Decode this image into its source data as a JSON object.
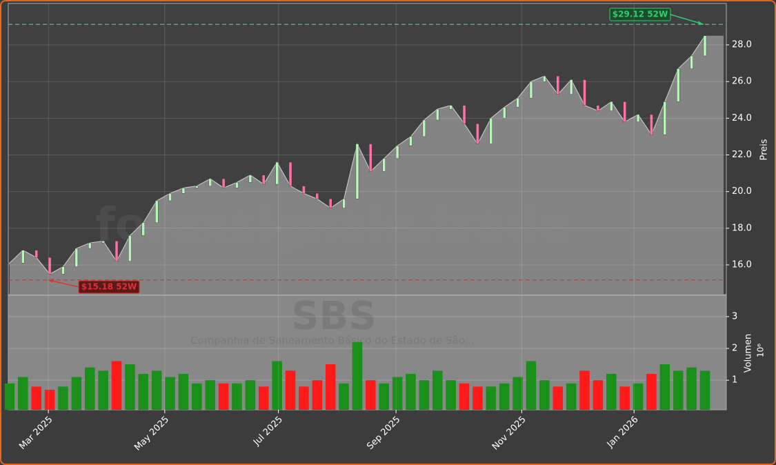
{
  "chart_data": [
    {
      "type": "area",
      "watermark": "forexsignale.trade",
      "ylabel": "Preis",
      "color": "#888888",
      "values": [
        16.1,
        16.8,
        16.4,
        15.5,
        15.9,
        16.9,
        17.2,
        17.3,
        16.2,
        17.6,
        18.3,
        19.5,
        19.9,
        20.2,
        20.3,
        20.7,
        20.2,
        20.5,
        20.9,
        20.4,
        21.6,
        20.3,
        19.9,
        19.6,
        19.1,
        19.6,
        22.6,
        21.1,
        21.8,
        22.5,
        23.0,
        23.9,
        24.5,
        24.7,
        23.7,
        22.6,
        24.0,
        24.6,
        25.1,
        26.0,
        26.3,
        25.3,
        26.1,
        24.7,
        24.4,
        24.9,
        23.8,
        24.2,
        23.1,
        24.9,
        26.7,
        27.4,
        28.5
      ],
      "hlines": [
        {
          "value": 29.12,
          "label": "$29.12 52W",
          "color": "#2ecc71"
        },
        {
          "value": 15.18,
          "label": "$15.18 52W",
          "color": "#e03030"
        }
      ],
      "xlim": [
        -0.1,
        53.6
      ],
      "xticks": [
        {
          "value": 2.9,
          "label": "Mar 2025"
        },
        {
          "value": 11.6,
          "label": "May 2025"
        },
        {
          "value": 20.1,
          "label": "Jul 2025"
        },
        {
          "value": 28.9,
          "label": "Sep 2025"
        },
        {
          "value": 38.3,
          "label": "Nov 2025"
        },
        {
          "value": 46.7,
          "label": "Jan 2026"
        }
      ],
      "ylim": [
        14.38,
        30.26
      ],
      "yticks": [
        {
          "value": 16,
          "label": "16.0"
        },
        {
          "value": 18,
          "label": "18.0"
        },
        {
          "value": 20,
          "label": "20.0"
        },
        {
          "value": 22,
          "label": "22.0"
        },
        {
          "value": 24,
          "label": "24.0"
        },
        {
          "value": 26,
          "label": "26.0"
        },
        {
          "value": 28,
          "label": "28.0"
        }
      ],
      "grid": true
    },
    {
      "type": "bar",
      "watermark": "SBS",
      "subtitle": "Companhia de Saneamento Básico do Estado de São...",
      "ylabel": "Volumen",
      "offset_label": "10⁶",
      "up_color": "#1a8f1a",
      "down_color": "#ff1a1a",
      "values": [
        0.9,
        1.1,
        0.8,
        0.7,
        0.8,
        1.1,
        1.4,
        1.3,
        1.6,
        1.5,
        1.2,
        1.3,
        1.1,
        1.2,
        0.9,
        1.0,
        0.9,
        0.9,
        1.0,
        0.8,
        1.6,
        1.3,
        0.8,
        1.0,
        1.5,
        0.9,
        2.2,
        1.0,
        0.9,
        1.1,
        1.2,
        1.0,
        1.3,
        1.0,
        0.9,
        0.8,
        0.8,
        0.9,
        1.1,
        1.6,
        1.0,
        0.8,
        0.9,
        1.3,
        1.0,
        1.2,
        0.8,
        0.9,
        1.2,
        1.5,
        1.3,
        1.4,
        1.3
      ],
      "xlim": [
        -0.1,
        53.6
      ],
      "ylim": [
        0.07,
        3.67
      ],
      "yticks": [
        1,
        2,
        3
      ],
      "grid": true
    }
  ]
}
